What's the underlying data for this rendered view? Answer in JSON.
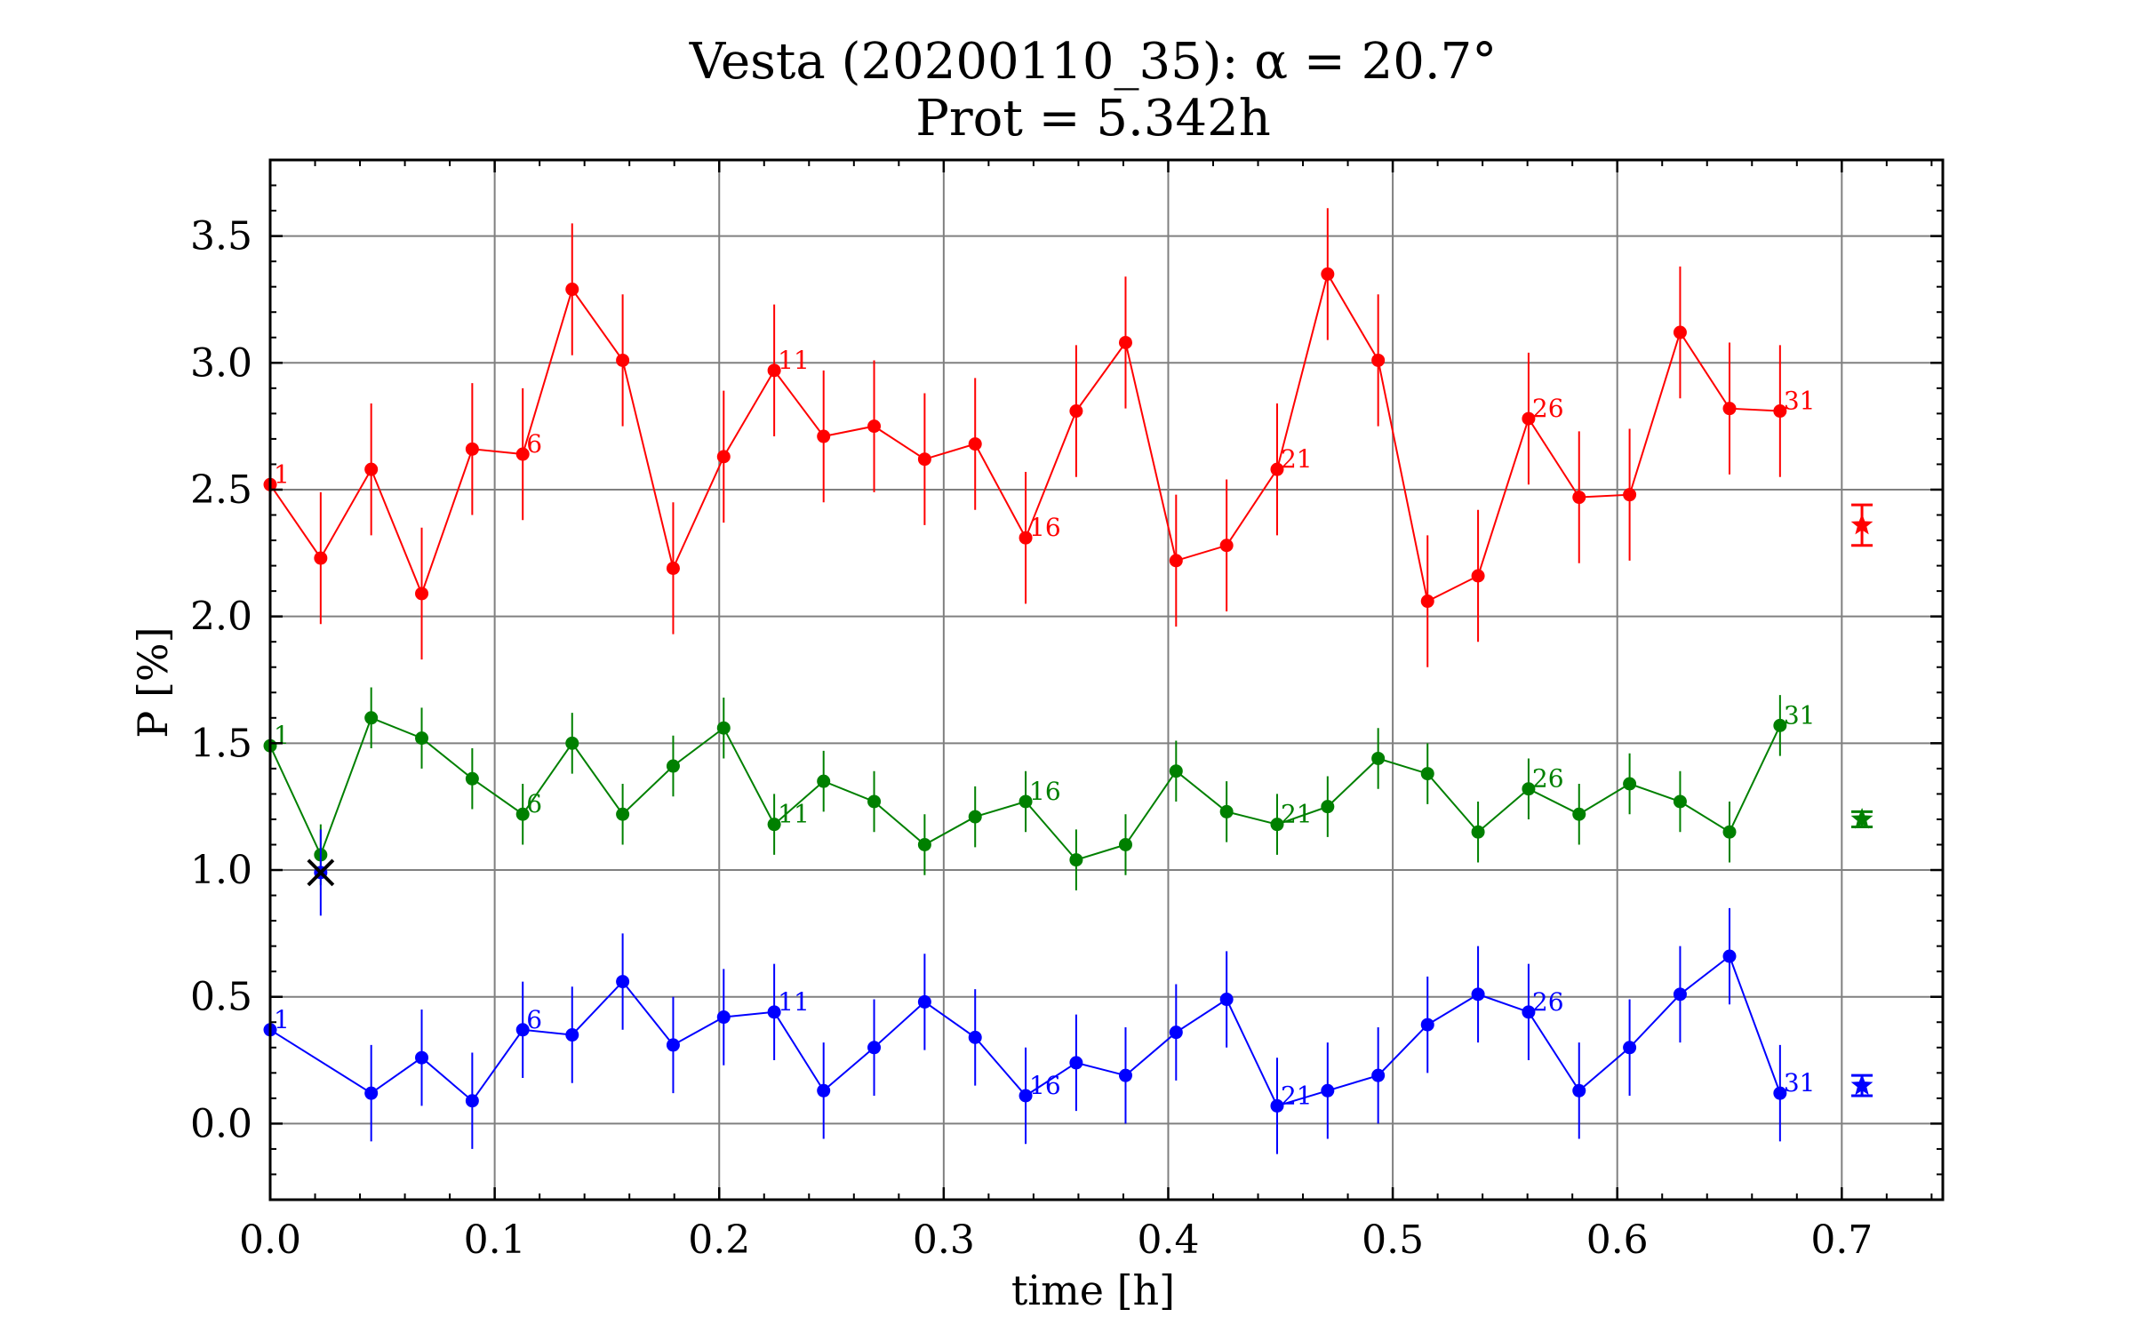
{
  "chart_data": {
    "type": "scatter",
    "title": "Vesta (20200110_35): α = 20.7°",
    "subtitle": "Prot = 5.342h",
    "xlabel": "time [h]",
    "ylabel": "P [%]",
    "xlim": [
      0.0,
      0.745
    ],
    "ylim": [
      -0.3,
      3.8
    ],
    "xticks": [
      "0.0",
      "0.1",
      "0.2",
      "0.3",
      "0.4",
      "0.5",
      "0.6",
      "0.7"
    ],
    "yticks": [
      "0.0",
      "0.5",
      "1.0",
      "1.5",
      "2.0",
      "2.5",
      "3.0",
      "3.5"
    ],
    "grid": true,
    "x": [
      0.0,
      0.0225,
      0.045,
      0.0675,
      0.09,
      0.1125,
      0.1345,
      0.157,
      0.1795,
      0.202,
      0.2245,
      0.2465,
      0.269,
      0.2915,
      0.314,
      0.3365,
      0.359,
      0.381,
      0.4035,
      0.426,
      0.4485,
      0.471,
      0.4935,
      0.5155,
      0.538,
      0.5605,
      0.583,
      0.6055,
      0.628,
      0.65,
      0.6725
    ],
    "series": [
      {
        "color": "#ff0000",
        "values": [
          2.52,
          2.23,
          2.58,
          2.09,
          2.66,
          2.64,
          3.29,
          3.01,
          2.19,
          2.63,
          2.97,
          2.71,
          2.75,
          2.62,
          2.68,
          2.31,
          2.81,
          3.08,
          2.22,
          2.28,
          2.58,
          3.35,
          3.01,
          2.06,
          2.16,
          2.78,
          2.47,
          2.48,
          3.12,
          2.82,
          2.81
        ],
        "errors": [
          0.25,
          0.26,
          0.26,
          0.26,
          0.26,
          0.26,
          0.26,
          0.26,
          0.26,
          0.26,
          0.26,
          0.26,
          0.26,
          0.26,
          0.26,
          0.26,
          0.26,
          0.26,
          0.26,
          0.26,
          0.26,
          0.26,
          0.26,
          0.26,
          0.26,
          0.26,
          0.26,
          0.26,
          0.26,
          0.26,
          0.26
        ],
        "labels": [
          "1",
          "6",
          "11",
          "16",
          "21",
          "26",
          "31"
        ],
        "mean": 2.36,
        "mean_error": 0.08,
        "mean_marker": "star"
      },
      {
        "color": "#008000",
        "values": [
          1.49,
          1.06,
          1.6,
          1.52,
          1.36,
          1.22,
          1.5,
          1.22,
          1.41,
          1.56,
          1.18,
          1.35,
          1.27,
          1.1,
          1.21,
          1.27,
          1.04,
          1.1,
          1.39,
          1.23,
          1.18,
          1.25,
          1.44,
          1.38,
          1.15,
          1.32,
          1.22,
          1.34,
          1.27,
          1.15,
          1.57
        ],
        "errors": [
          0.12,
          0.12,
          0.12,
          0.12,
          0.12,
          0.12,
          0.12,
          0.12,
          0.12,
          0.12,
          0.12,
          0.12,
          0.12,
          0.12,
          0.12,
          0.12,
          0.12,
          0.12,
          0.12,
          0.12,
          0.12,
          0.12,
          0.12,
          0.12,
          0.12,
          0.12,
          0.12,
          0.12,
          0.12,
          0.12,
          0.12
        ],
        "labels": [
          "1",
          "6",
          "11",
          "16",
          "21",
          "26",
          "31"
        ],
        "mean": 1.2,
        "mean_error": 0.03,
        "mean_marker": "star"
      },
      {
        "color": "#0000ff",
        "values": [
          0.37,
          null,
          0.12,
          0.26,
          0.09,
          0.37,
          0.35,
          0.56,
          0.31,
          0.42,
          0.44,
          0.13,
          0.3,
          0.48,
          0.34,
          0.11,
          0.24,
          0.19,
          0.36,
          0.49,
          0.07,
          0.13,
          0.19,
          0.39,
          0.51,
          0.44,
          0.13,
          0.3,
          0.51,
          0.66,
          0.12
        ],
        "errors": [
          0.19,
          0.19,
          0.19,
          0.19,
          0.19,
          0.19,
          0.19,
          0.19,
          0.19,
          0.19,
          0.19,
          0.19,
          0.19,
          0.19,
          0.19,
          0.19,
          0.19,
          0.19,
          0.19,
          0.19,
          0.19,
          0.19,
          0.19,
          0.19,
          0.19,
          0.19,
          0.19,
          0.19,
          0.19,
          0.19,
          0.19
        ],
        "labels": [
          "1",
          "6",
          "11",
          "16",
          "21",
          "26",
          "31"
        ],
        "mean": 0.15,
        "mean_error": 0.04,
        "mean_marker": "star"
      }
    ],
    "rejected_points": [
      {
        "x": 0.0225,
        "y": 0.99,
        "error": 0.17,
        "color": "#0000ff",
        "marker": "x"
      }
    ],
    "mean_x": 0.709
  }
}
